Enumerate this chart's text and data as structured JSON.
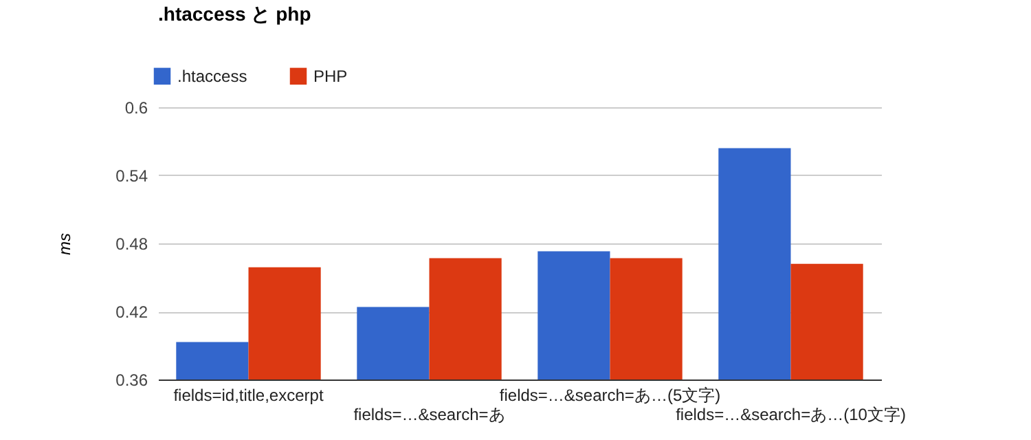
{
  "chart_data": {
    "type": "bar",
    "title": ".htaccess と php",
    "ylabel": "ms",
    "categories": [
      "fields=id,title,excerpt",
      "fields=…&search=あ",
      "fields=…&search=あ…(5文字)",
      "fields=…&search=あ…(10文字)"
    ],
    "series": [
      {
        "name": ".htaccess",
        "color": "#3366cc",
        "values": [
          0.393,
          0.424,
          0.473,
          0.564
        ]
      },
      {
        "name": "PHP",
        "color": "#dc3912",
        "values": [
          0.459,
          0.467,
          0.467,
          0.462
        ]
      }
    ],
    "ylim": [
      0.36,
      0.6
    ],
    "yticks": [
      0.36,
      0.42,
      0.48,
      0.54,
      0.6
    ],
    "grid": "y",
    "legend": "top left"
  }
}
